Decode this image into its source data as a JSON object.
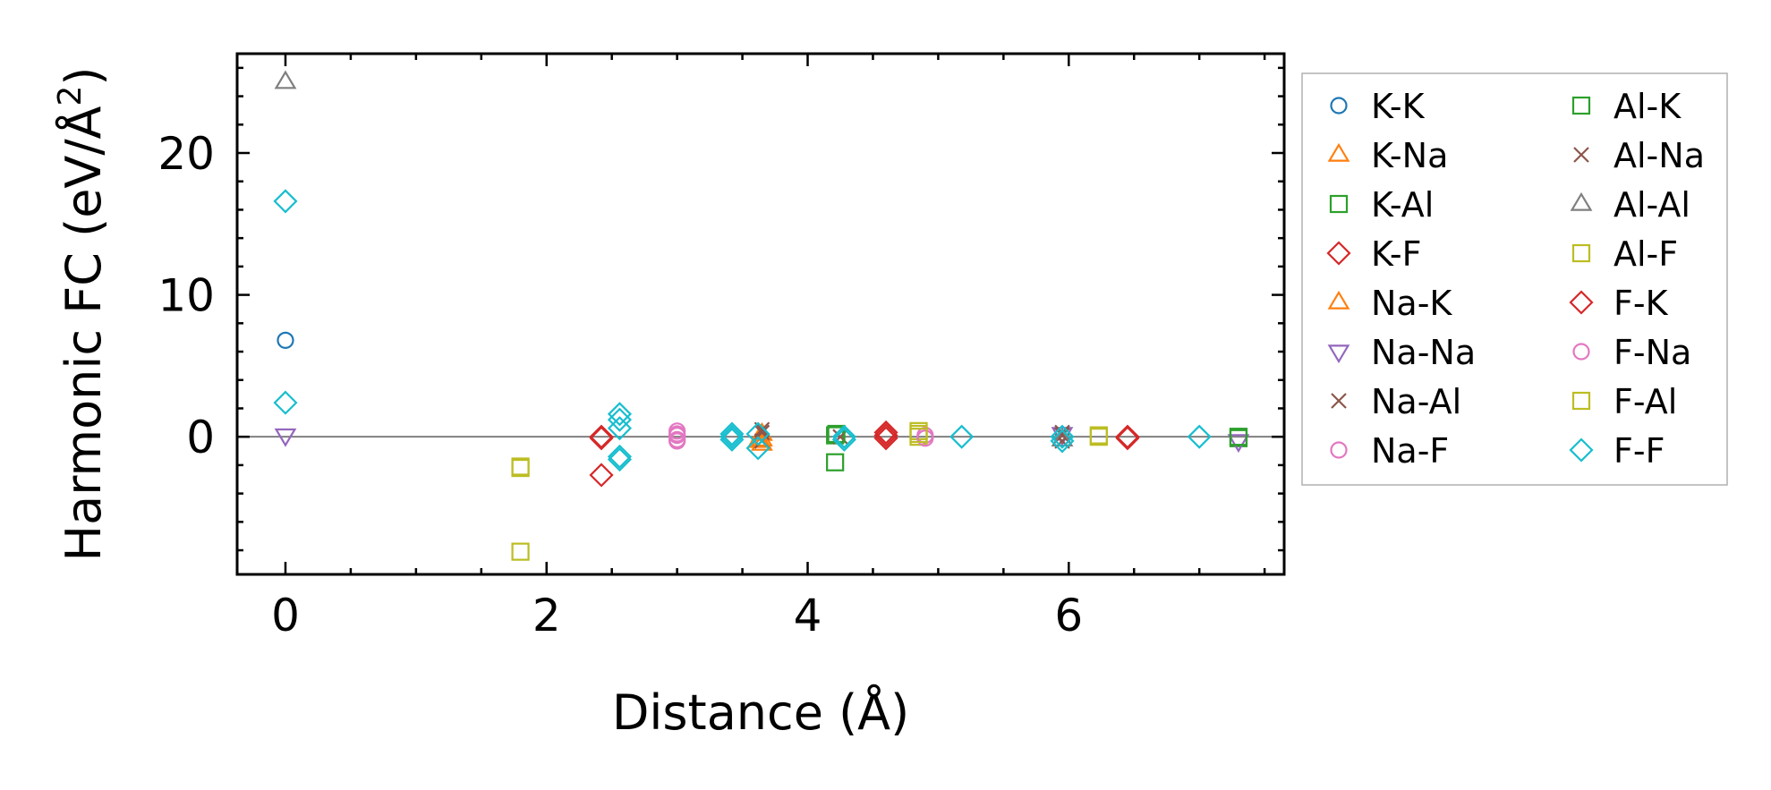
{
  "chart_data": {
    "type": "scatter",
    "xlabel": "Distance (Å)",
    "ylabel": "Harmonic FC (eV/Å",
    "ylabel_sup": "2",
    "ylabel_close": ")",
    "xlim": [
      -0.37,
      7.65
    ],
    "ylim": [
      -9.7,
      27.0
    ],
    "xticks": [
      0,
      2,
      4,
      6
    ],
    "xtick_labels": [
      "0",
      "2",
      "4",
      "6"
    ],
    "yticks": [
      0,
      10,
      20
    ],
    "ytick_labels": [
      "0",
      "10",
      "20"
    ],
    "zero_line": true,
    "grid": false,
    "legend_position": "outside-right",
    "series": [
      {
        "name": "K-K",
        "marker": "circle",
        "color": "#1f77b4",
        "points": [
          [
            0,
            6.8
          ]
        ]
      },
      {
        "name": "K-Na",
        "marker": "triangle-up",
        "color": "#ff7f0e",
        "points": [
          [
            3.65,
            -0.2
          ],
          [
            3.65,
            -0.5
          ]
        ]
      },
      {
        "name": "K-Al",
        "marker": "square",
        "color": "#2ca02c",
        "points": [
          [
            4.21,
            0.1
          ],
          [
            4.21,
            -1.8
          ],
          [
            7.3,
            -0.1
          ]
        ]
      },
      {
        "name": "K-F",
        "marker": "diamond",
        "color": "#d62728",
        "points": [
          [
            2.42,
            0.0
          ],
          [
            2.42,
            -2.7
          ],
          [
            4.6,
            0.3
          ],
          [
            4.6,
            -0.1
          ],
          [
            6.45,
            0.0
          ]
        ]
      },
      {
        "name": "Na-K",
        "marker": "triangle-up",
        "color": "#ff7f0e",
        "points": [
          [
            3.65,
            0.2
          ],
          [
            3.62,
            -0.3
          ]
        ]
      },
      {
        "name": "Na-Na",
        "marker": "triangle-down",
        "color": "#9467bd",
        "points": [
          [
            0,
            0.1
          ],
          [
            5.95,
            0.2
          ],
          [
            7.3,
            -0.3
          ]
        ]
      },
      {
        "name": "Na-Al",
        "marker": "x",
        "color": "#8c564b",
        "points": [
          [
            3.65,
            0.5
          ],
          [
            3.65,
            -0.3
          ],
          [
            4.25,
            0.0
          ],
          [
            5.95,
            0.3
          ],
          [
            5.95,
            -0.3
          ]
        ]
      },
      {
        "name": "Na-F",
        "marker": "circle",
        "color": "#e377c2",
        "points": [
          [
            3.0,
            0.4
          ],
          [
            3.0,
            0.1
          ],
          [
            3.0,
            -0.3
          ],
          [
            4.9,
            0.1
          ]
        ]
      },
      {
        "name": "Al-K",
        "marker": "square",
        "color": "#2ca02c",
        "points": [
          [
            4.22,
            0.2
          ],
          [
            7.3,
            0.0
          ]
        ]
      },
      {
        "name": "Al-Na",
        "marker": "x",
        "color": "#8c564b",
        "points": [
          [
            3.65,
            0.3
          ],
          [
            5.95,
            0.1
          ]
        ]
      },
      {
        "name": "Al-Al",
        "marker": "triangle-up",
        "color": "#7f7f7f",
        "points": [
          [
            0,
            25.0
          ],
          [
            5.95,
            -0.2
          ]
        ]
      },
      {
        "name": "Al-F",
        "marker": "square",
        "color": "#bcbd22",
        "points": [
          [
            1.8,
            -2.2
          ],
          [
            1.8,
            -8.1
          ],
          [
            4.85,
            0.4
          ],
          [
            4.85,
            0.0
          ],
          [
            6.23,
            0.0
          ]
        ]
      },
      {
        "name": "F-K",
        "marker": "diamond",
        "color": "#d62728",
        "points": [
          [
            2.42,
            -0.1
          ],
          [
            4.6,
            0.1
          ],
          [
            6.45,
            -0.1
          ]
        ]
      },
      {
        "name": "F-Na",
        "marker": "circle",
        "color": "#e377c2",
        "points": [
          [
            3.0,
            0.2
          ],
          [
            3.0,
            -0.2
          ],
          [
            4.9,
            -0.1
          ]
        ]
      },
      {
        "name": "F-Al",
        "marker": "square",
        "color": "#bcbd22",
        "points": [
          [
            1.8,
            -2.1
          ],
          [
            4.85,
            0.2
          ],
          [
            6.23,
            0.1
          ]
        ]
      },
      {
        "name": "F-F",
        "marker": "diamond",
        "color": "#17becf",
        "points": [
          [
            0,
            16.6
          ],
          [
            0,
            2.4
          ],
          [
            2.56,
            1.6
          ],
          [
            2.56,
            1.2
          ],
          [
            2.56,
            0.6
          ],
          [
            2.56,
            -1.4
          ],
          [
            2.56,
            -1.6
          ],
          [
            3.42,
            0.2
          ],
          [
            3.42,
            0.0
          ],
          [
            3.42,
            -0.2
          ],
          [
            3.62,
            0.2
          ],
          [
            3.62,
            -0.8
          ],
          [
            4.28,
            0.0
          ],
          [
            4.28,
            -0.2
          ],
          [
            5.18,
            0.0
          ],
          [
            5.95,
            0.0
          ],
          [
            5.95,
            -0.3
          ],
          [
            7.0,
            0.0
          ]
        ]
      }
    ]
  }
}
